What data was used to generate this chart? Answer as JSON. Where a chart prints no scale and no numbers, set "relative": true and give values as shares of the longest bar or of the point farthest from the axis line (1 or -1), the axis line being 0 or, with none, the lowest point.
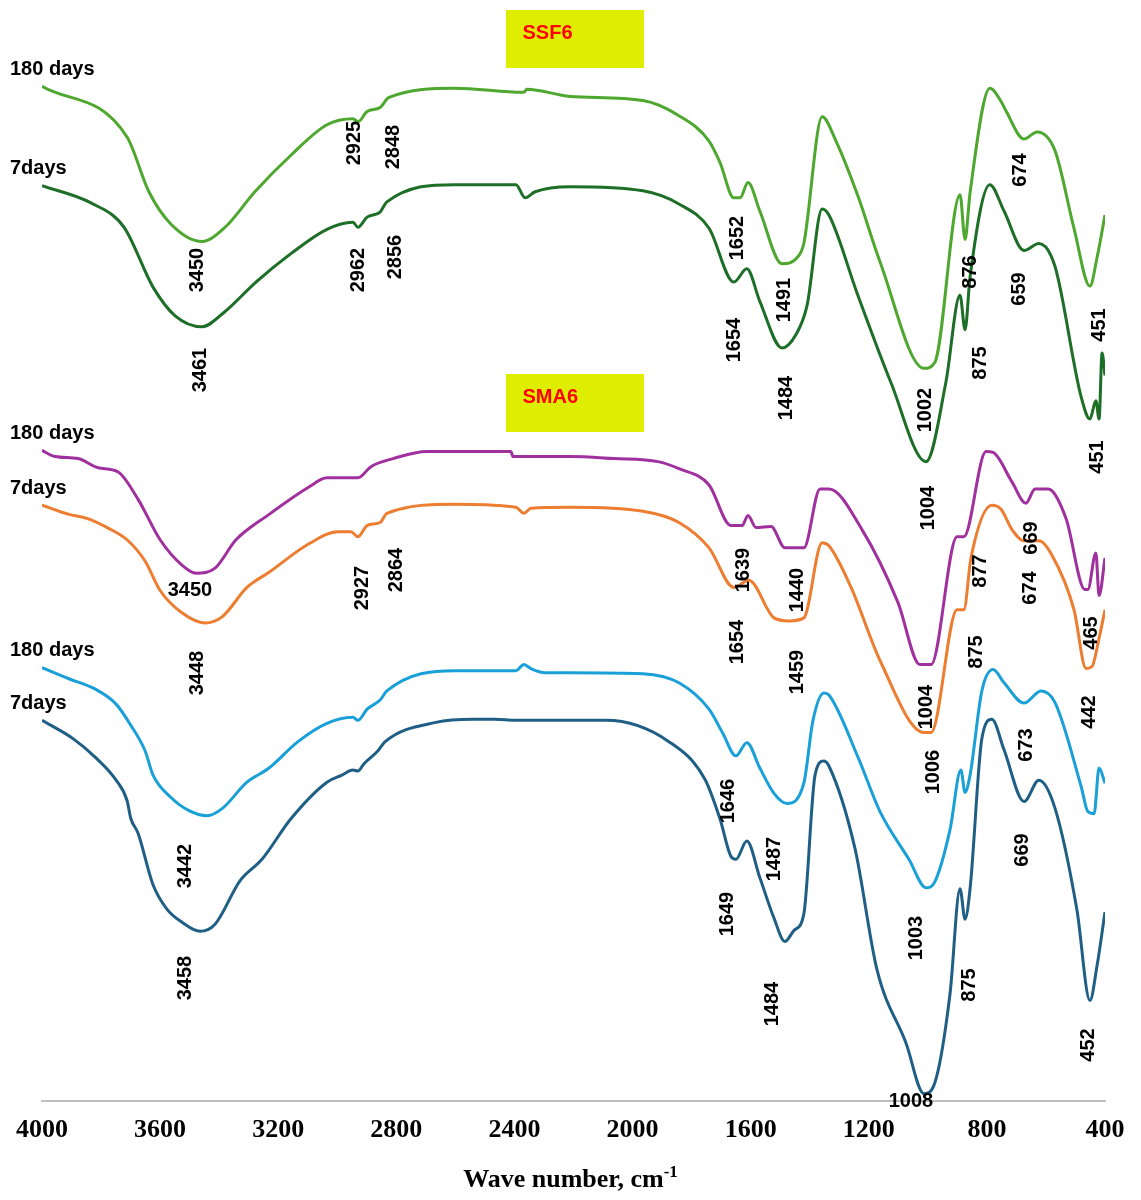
{
  "chart_data": {
    "type": "line",
    "relative": true,
    "xlabel": "Wave number, cm$^{-1}$",
    "xlim": [
      4000,
      400
    ],
    "xticks": [
      4000,
      3600,
      3200,
      2800,
      2400,
      2000,
      1600,
      1200,
      800,
      400
    ],
    "grid": false,
    "legend": false,
    "marker": "none",
    "line_style": "solid",
    "series": [
      {
        "name": "180 days",
        "color": "#4ea72e",
        "x": [
          4000,
          3712,
          3638,
          3563,
          3458,
          3380,
          3279,
          3157,
          3035,
          2947,
          2930,
          2899,
          2855,
          2825,
          2601,
          2368,
          2358,
          2212,
          1965,
          1843,
          1741,
          1704,
          1657,
          1636,
          1609,
          1569,
          1494,
          1440,
          1420,
          1358,
          1311,
          1237,
          1162,
          1013,
          976,
          891,
          874,
          857,
          790,
          752,
          736,
          674,
          630,
          570,
          505,
          451,
          427,
          400
        ],
        "values": [
          1,
          0.95,
          0.896,
          0.864,
          0.847,
          0.861,
          0.896,
          0.932,
          0.962,
          0.968,
          0.965,
          0.975,
          0.979,
          0.989,
          0.998,
          0.994,
          0.997,
          0.99,
          0.986,
          0.971,
          0.946,
          0.925,
          0.89,
          0.89,
          0.905,
          0.877,
          0.825,
          0.832,
          0.845,
          0.97,
          0.946,
          0.892,
          0.827,
          0.722,
          0.728,
          0.893,
          0.849,
          0.895,
          0.998,
          0.985,
          0.976,
          0.948,
          0.955,
          0.937,
          0.86,
          0.803,
          0.831,
          0.873
        ]
      },
      {
        "name": "7days",
        "color": "#1d6e27",
        "x": [
          4000,
          3834,
          3722,
          3624,
          3550,
          3458,
          3380,
          3279,
          3157,
          3035,
          2947,
          2930,
          2899,
          2855,
          2832,
          2601,
          2395,
          2364,
          2330,
          2212,
          1965,
          1843,
          1741,
          1657,
          1613,
          1569,
          1494,
          1447,
          1409,
          1358,
          1335,
          1237,
          1125,
          1006,
          939,
          891,
          874,
          857,
          790,
          742,
          674,
          624,
          570,
          481,
          451,
          431,
          420,
          410,
          400
        ],
        "values": [
          0.902,
          0.885,
          0.861,
          0.802,
          0.774,
          0.763,
          0.778,
          0.806,
          0.835,
          0.859,
          0.866,
          0.861,
          0.871,
          0.876,
          0.886,
          0.903,
          0.903,
          0.89,
          0.896,
          0.901,
          0.897,
          0.884,
          0.86,
          0.807,
          0.82,
          0.788,
          0.742,
          0.755,
          0.784,
          0.879,
          0.873,
          0.794,
          0.708,
          0.63,
          0.708,
          0.794,
          0.76,
          0.812,
          0.903,
          0.877,
          0.838,
          0.845,
          0.823,
          0.694,
          0.672,
          0.69,
          0.672,
          0.737,
          0.715
        ]
      },
      {
        "name": "180 days",
        "color": "#a0309e",
        "x": [
          4000,
          3956,
          3878,
          3810,
          3743,
          3675,
          3600,
          3526,
          3478,
          3414,
          3343,
          3231,
          3096,
          3035,
          2930,
          2886,
          2811,
          2696,
          2412,
          2405,
          2212,
          2063,
          1914,
          1843,
          1741,
          1667,
          1629,
          1609,
          1582,
          1531,
          1484,
          1420,
          1365,
          1335,
          1223,
          1101,
          1027,
          989,
          901,
          878,
          803,
          779,
          715,
          668,
          637,
          593,
          532,
          468,
          458,
          431,
          420,
          400
        ],
        "values": [
          0.641,
          0.635,
          0.633,
          0.624,
          0.62,
          0.593,
          0.553,
          0.528,
          0.52,
          0.525,
          0.553,
          0.578,
          0.605,
          0.614,
          0.614,
          0.625,
          0.633,
          0.64,
          0.64,
          0.635,
          0.635,
          0.633,
          0.63,
          0.623,
          0.607,
          0.567,
          0.567,
          0.577,
          0.565,
          0.566,
          0.545,
          0.545,
          0.603,
          0.603,
          0.563,
          0.491,
          0.43,
          0.43,
          0.556,
          0.556,
          0.64,
          0.639,
          0.61,
          0.589,
          0.603,
          0.603,
          0.574,
          0.504,
          0.504,
          0.54,
          0.498,
          0.535
        ]
      },
      {
        "name": "7days",
        "color": "#ed7d31",
        "x": [
          4000,
          3909,
          3848,
          3773,
          3712,
          3651,
          3600,
          3526,
          3448,
          3390,
          3306,
          3231,
          3096,
          2998,
          2954,
          2930,
          2899,
          2855,
          2832,
          2601,
          2395,
          2368,
          2344,
          2212,
          1965,
          1843,
          1741,
          1657,
          1606,
          1521,
          1470,
          1420,
          1358,
          1335,
          1260,
          1162,
          1013,
          989,
          901,
          878,
          854,
          783,
          752,
          715,
          674,
          624,
          580,
          505,
          464,
          444,
          420,
          400
        ],
        "values": [
          0.587,
          0.578,
          0.574,
          0.564,
          0.553,
          0.532,
          0.503,
          0.481,
          0.471,
          0.477,
          0.506,
          0.521,
          0.549,
          0.561,
          0.561,
          0.556,
          0.567,
          0.57,
          0.579,
          0.588,
          0.585,
          0.579,
          0.584,
          0.585,
          0.581,
          0.57,
          0.545,
          0.506,
          0.513,
          0.476,
          0.473,
          0.476,
          0.55,
          0.547,
          0.506,
          0.434,
          0.363,
          0.363,
          0.484,
          0.484,
          0.535,
          0.587,
          0.583,
          0.563,
          0.552,
          0.552,
          0.538,
          0.484,
          0.426,
          0.428,
          0.456,
          0.484
        ]
      },
      {
        "name": "180 days",
        "color": "#1aa0d8",
        "x": [
          4000,
          3909,
          3821,
          3749,
          3699,
          3651,
          3624,
          3563,
          3502,
          3441,
          3390,
          3306,
          3231,
          3133,
          3035,
          2947,
          2930,
          2899,
          2855,
          2832,
          2601,
          2395,
          2368,
          2344,
          2297,
          2212,
          1965,
          1843,
          1741,
          1694,
          1650,
          1613,
          1569,
          1521,
          1477,
          1420,
          1389,
          1352,
          1335,
          1237,
          1162,
          1064,
          1006,
          976,
          925,
          888,
          874,
          857,
          817,
          779,
          742,
          674,
          617,
          570,
          481,
          458,
          437,
          420,
          400
        ],
        "values": [
          0.427,
          0.416,
          0.406,
          0.391,
          0.37,
          0.345,
          0.321,
          0.299,
          0.286,
          0.281,
          0.288,
          0.314,
          0.328,
          0.354,
          0.372,
          0.378,
          0.375,
          0.386,
          0.395,
          0.404,
          0.424,
          0.424,
          0.43,
          0.426,
          0.422,
          0.422,
          0.421,
          0.412,
          0.386,
          0.362,
          0.34,
          0.353,
          0.328,
          0.303,
          0.293,
          0.313,
          0.375,
          0.402,
          0.4,
          0.339,
          0.285,
          0.238,
          0.21,
          0.216,
          0.267,
          0.326,
          0.304,
          0.321,
          0.404,
          0.425,
          0.412,
          0.392,
          0.404,
          0.393,
          0.31,
          0.285,
          0.283,
          0.328,
          0.313
        ]
      },
      {
        "name": "7days",
        "color": "#1f5f86",
        "x": [
          4000,
          3895,
          3821,
          3749,
          3712,
          3699,
          3675,
          3624,
          3577,
          3526,
          3465,
          3414,
          3329,
          3255,
          3157,
          3035,
          2984,
          2947,
          2930,
          2910,
          2862,
          2838,
          2666,
          2540,
          2466,
          2395,
          2212,
          2090,
          1877,
          1755,
          1704,
          1667,
          1650,
          1613,
          1569,
          1521,
          1484,
          1453,
          1420,
          1382,
          1352,
          1335,
          1247,
          1172,
          1074,
          1013,
          976,
          925,
          891,
          874,
          857,
          817,
          783,
          742,
          674,
          624,
          570,
          495,
          451,
          427,
          400
        ],
        "values": [
          0.375,
          0.357,
          0.339,
          0.316,
          0.296,
          0.278,
          0.264,
          0.213,
          0.189,
          0.176,
          0.167,
          0.174,
          0.217,
          0.238,
          0.278,
          0.314,
          0.321,
          0.326,
          0.325,
          0.332,
          0.345,
          0.354,
          0.373,
          0.376,
          0.376,
          0.375,
          0.375,
          0.375,
          0.354,
          0.317,
          0.278,
          0.241,
          0.238,
          0.256,
          0.22,
          0.18,
          0.157,
          0.168,
          0.184,
          0.321,
          0.335,
          0.33,
          0.249,
          0.129,
          0.057,
          0.007,
          0.018,
          0.105,
          0.209,
          0.179,
          0.209,
          0.357,
          0.376,
          0.346,
          0.295,
          0.316,
          0.289,
          0.188,
          0.099,
          0.133,
          0.186
        ]
      }
    ],
    "annotations": [
      "SSF6",
      "SMA6",
      "2925",
      "2848",
      "3450",
      "2962",
      "2856",
      "3461",
      "1652",
      "1491",
      "1654",
      "1484",
      "674",
      "876",
      "659",
      "875",
      "451",
      "1002",
      "1004",
      "451",
      "3450",
      "2927",
      "2864",
      "3448",
      "1639",
      "1440",
      "1654",
      "1459",
      "877",
      "669",
      "674",
      "875",
      "465",
      "1004",
      "442",
      "1006",
      "3442",
      "3458",
      "1646",
      "1487",
      "1649",
      "1484",
      "1003",
      "875",
      "673",
      "669",
      "452",
      "1008"
    ]
  }
}
